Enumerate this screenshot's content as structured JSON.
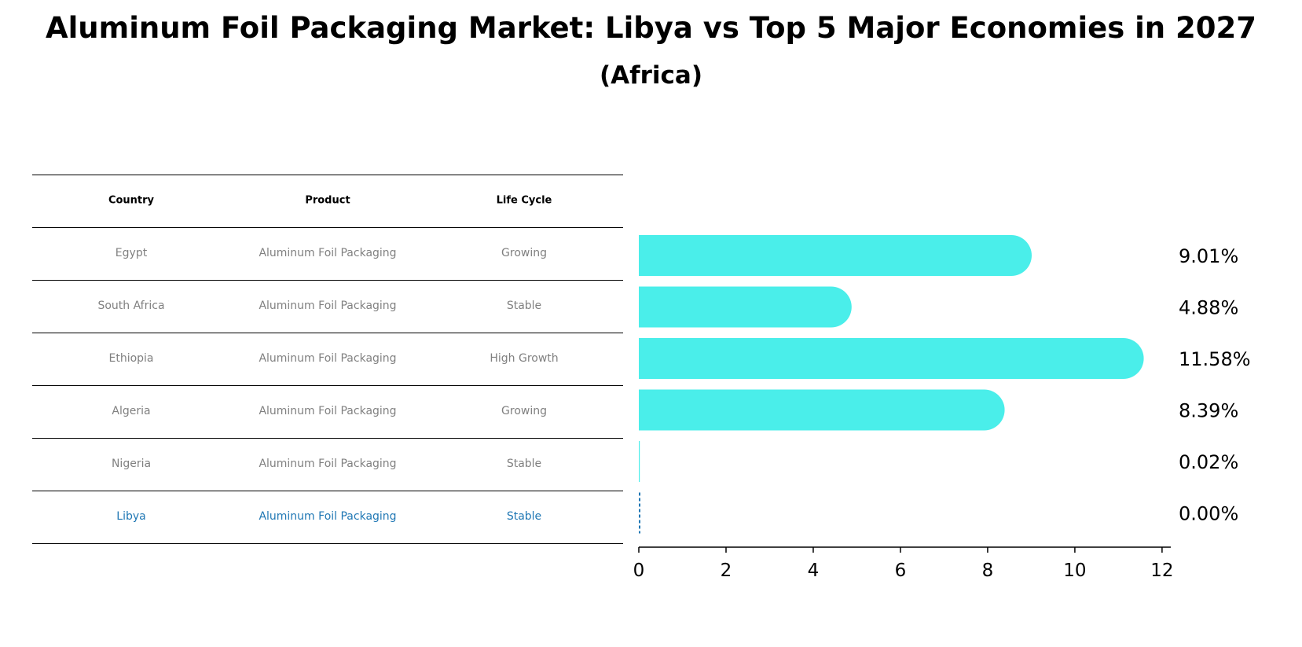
{
  "title": "Aluminum Foil Packaging Market: Libya vs Top 5 Major Economies in 2027",
  "subtitle": "(Africa)",
  "table": {
    "headers": [
      "Country",
      "Product",
      "Life Cycle"
    ],
    "rows": [
      [
        "Egypt",
        "Aluminum Foil Packaging",
        "Growing"
      ],
      [
        "South Africa",
        "Aluminum Foil Packaging",
        "Stable"
      ],
      [
        "Ethiopia",
        "Aluminum Foil Packaging",
        "High Growth"
      ],
      [
        "Algeria",
        "Aluminum Foil Packaging",
        "Growing"
      ],
      [
        "Nigeria",
        "Aluminum Foil Packaging",
        "Stable"
      ],
      [
        "Libya",
        "Aluminum Foil Packaging",
        "Stable"
      ]
    ],
    "highlight_row": 5,
    "highlight_color": "#1f77b4"
  },
  "chart_data": {
    "type": "bar",
    "orientation": "horizontal",
    "categories": [
      "Egypt",
      "South Africa",
      "Ethiopia",
      "Algeria",
      "Nigeria",
      "Libya"
    ],
    "values": [
      9.01,
      4.88,
      11.58,
      8.39,
      0.02,
      0.0
    ],
    "value_labels": [
      "9.01%",
      "4.88%",
      "11.58%",
      "8.39%",
      "0.02%",
      "0.00%"
    ],
    "xlim": [
      0,
      12.2
    ],
    "xticks": [
      0,
      2,
      4,
      6,
      8,
      10,
      12
    ],
    "bar_color": "#4aeeea",
    "highlight_color": "#1f77b4",
    "title": "Aluminum Foil Packaging Market: Libya vs Top 5 Major Economies in 2027"
  }
}
